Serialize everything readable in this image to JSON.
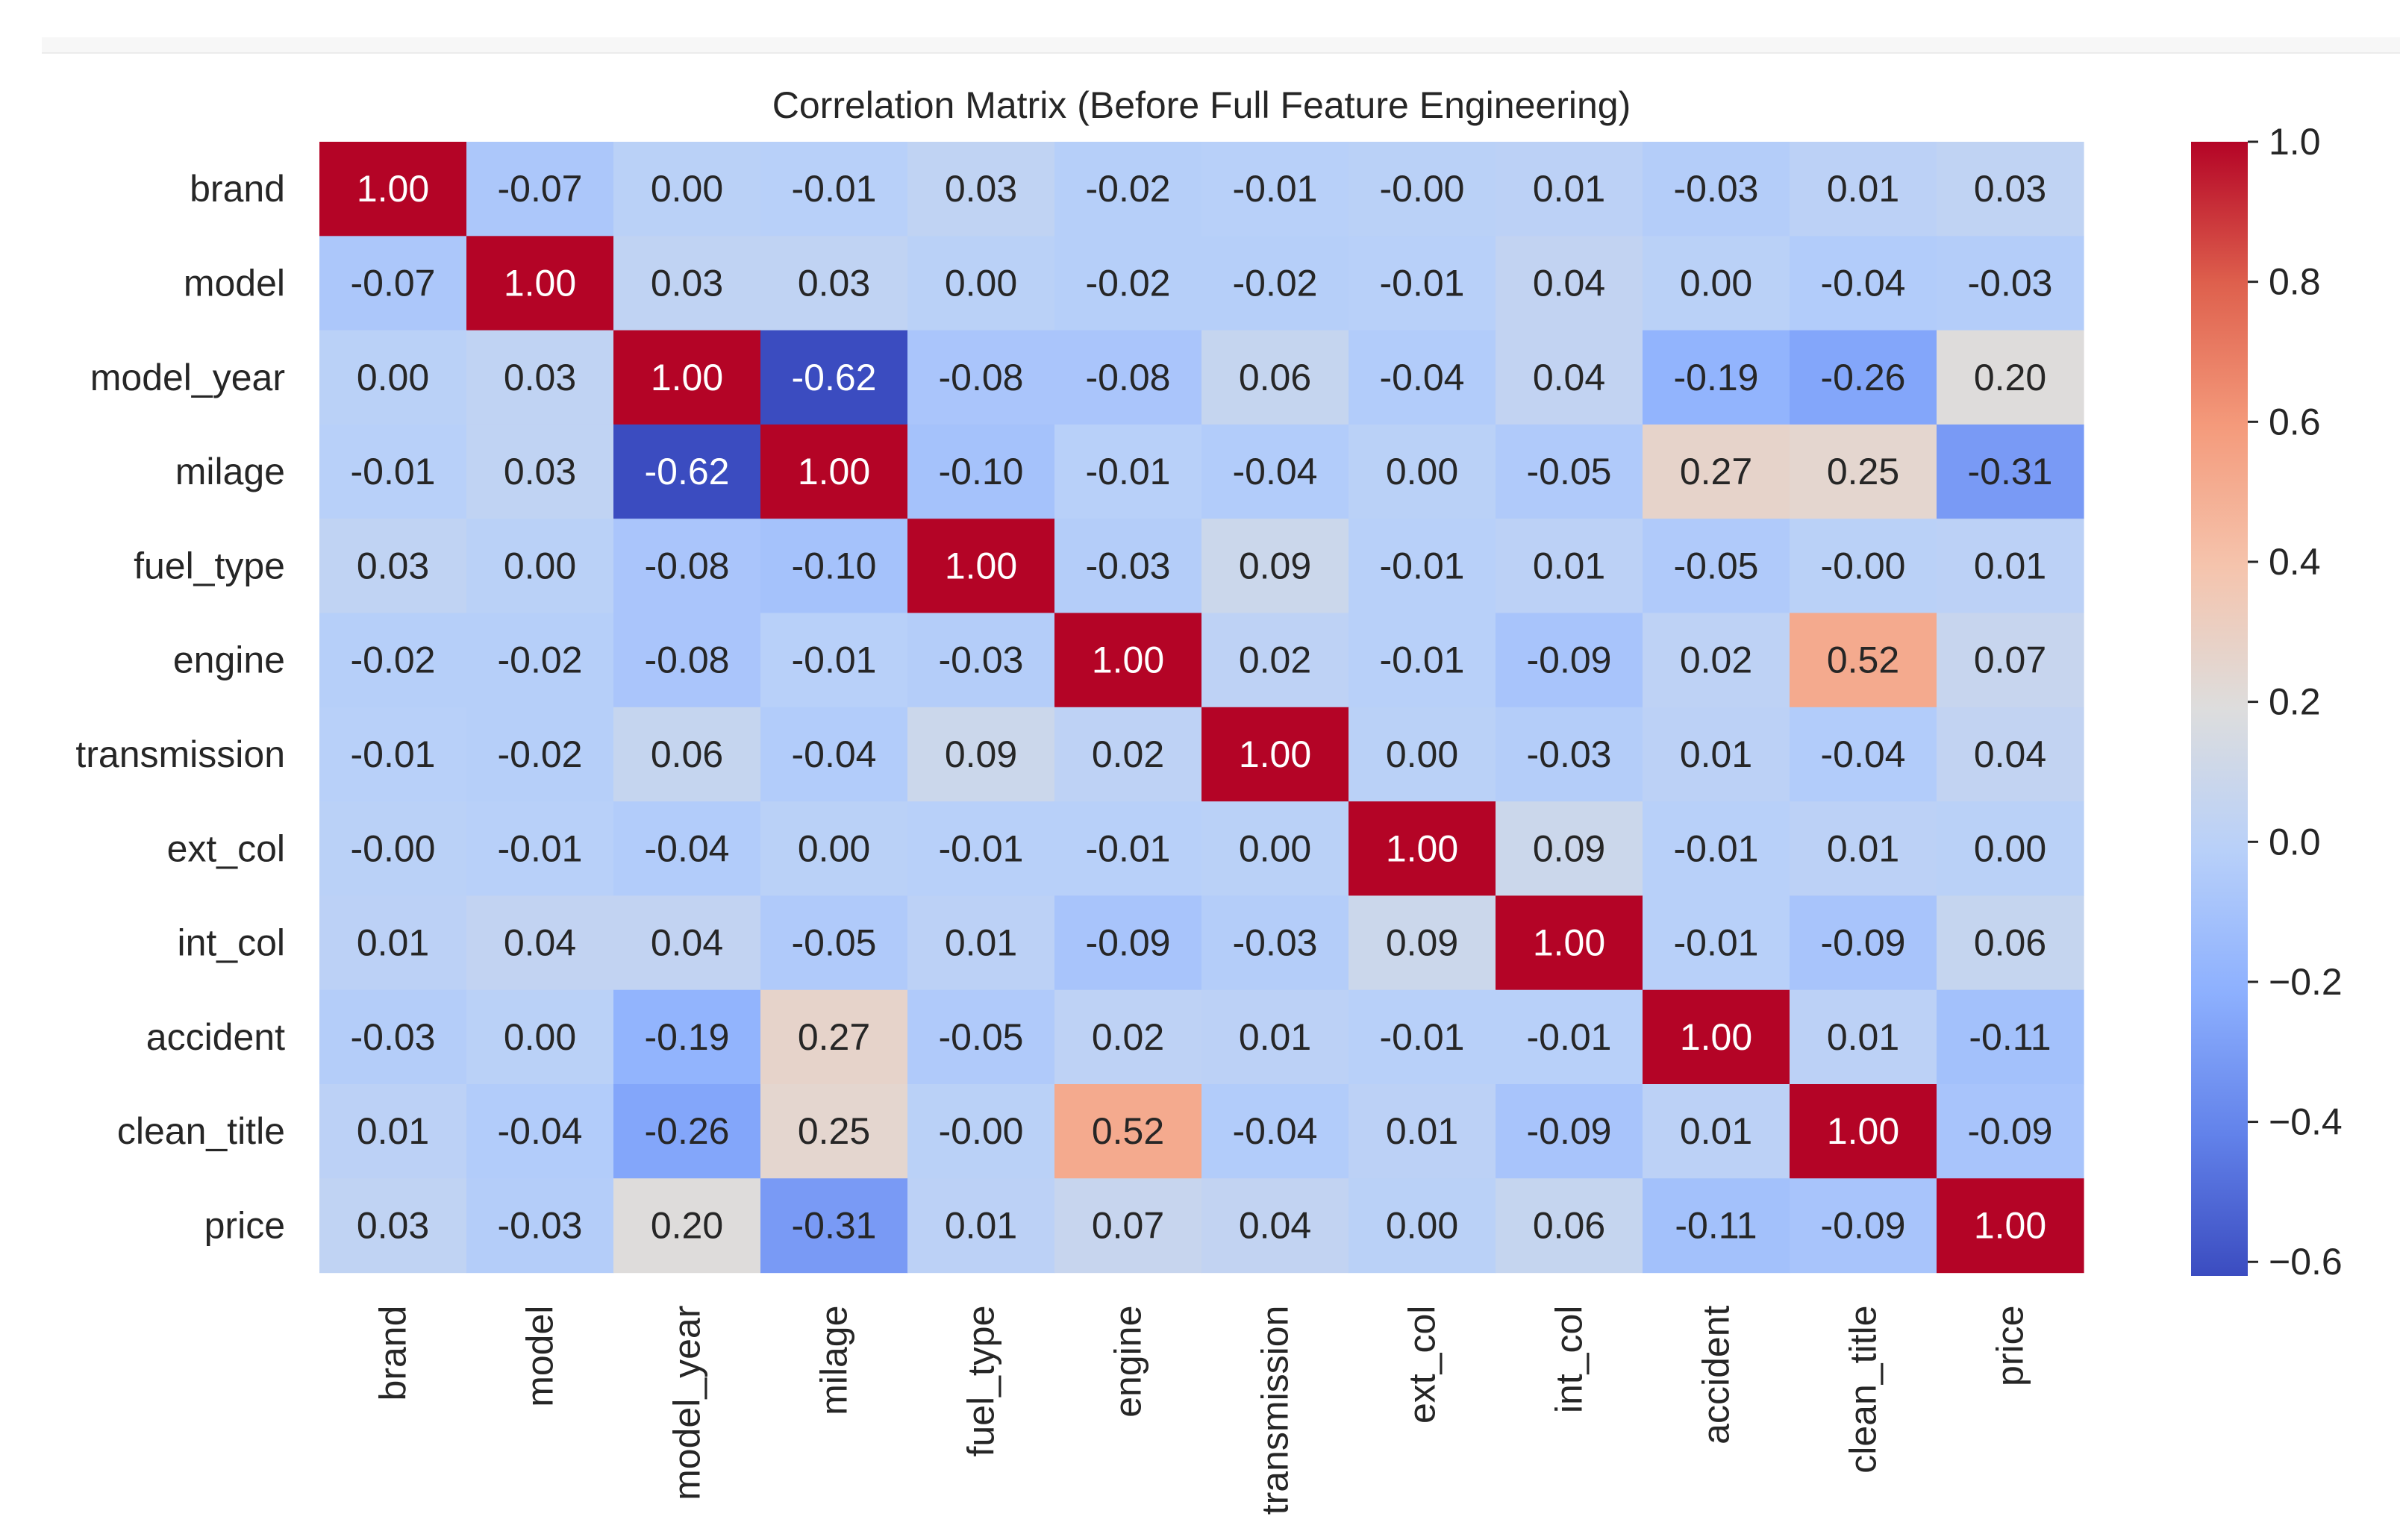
{
  "chart_data": {
    "type": "heatmap",
    "title": "Correlation Matrix (Before Full Feature Engineering)",
    "xlabel": "",
    "ylabel": "",
    "colormap": "coolwarm",
    "vmin": -0.62,
    "vmax": 1.0,
    "colorbar_ticks": [
      1.0,
      0.8,
      0.6,
      0.4,
      0.2,
      0.0,
      -0.2,
      -0.4,
      -0.6
    ],
    "colorbar_tick_labels": [
      "1.0",
      "0.8",
      "0.6",
      "0.4",
      "0.2",
      "0.0",
      "−0.2",
      "−0.4",
      "−0.6"
    ],
    "row_labels": [
      "brand",
      "model",
      "model_year",
      "milage",
      "fuel_type",
      "engine",
      "transmission",
      "ext_col",
      "int_col",
      "accident",
      "clean_title",
      "price"
    ],
    "col_labels": [
      "brand",
      "model",
      "model_year",
      "milage",
      "fuel_type",
      "engine",
      "transmission",
      "ext_col",
      "int_col",
      "accident",
      "clean_title",
      "price"
    ],
    "values": [
      [
        1.0,
        -0.07,
        0.0,
        -0.01,
        0.03,
        -0.02,
        -0.01,
        -0.0,
        0.01,
        -0.03,
        0.01,
        0.03
      ],
      [
        -0.07,
        1.0,
        0.03,
        0.03,
        0.0,
        -0.02,
        -0.02,
        -0.01,
        0.04,
        0.0,
        -0.04,
        -0.03
      ],
      [
        0.0,
        0.03,
        1.0,
        -0.62,
        -0.08,
        -0.08,
        0.06,
        -0.04,
        0.04,
        -0.19,
        -0.26,
        0.2
      ],
      [
        -0.01,
        0.03,
        -0.62,
        1.0,
        -0.1,
        -0.01,
        -0.04,
        0.0,
        -0.05,
        0.27,
        0.25,
        -0.31
      ],
      [
        0.03,
        0.0,
        -0.08,
        -0.1,
        1.0,
        -0.03,
        0.09,
        -0.01,
        0.01,
        -0.05,
        -0.0,
        0.01
      ],
      [
        -0.02,
        -0.02,
        -0.08,
        -0.01,
        -0.03,
        1.0,
        0.02,
        -0.01,
        -0.09,
        0.02,
        0.52,
        0.07
      ],
      [
        -0.01,
        -0.02,
        0.06,
        -0.04,
        0.09,
        0.02,
        1.0,
        0.0,
        -0.03,
        0.01,
        -0.04,
        0.04
      ],
      [
        -0.0,
        -0.01,
        -0.04,
        0.0,
        -0.01,
        -0.01,
        0.0,
        1.0,
        0.09,
        -0.01,
        0.01,
        0.0
      ],
      [
        0.01,
        0.04,
        0.04,
        -0.05,
        0.01,
        -0.09,
        -0.03,
        0.09,
        1.0,
        -0.01,
        -0.09,
        0.06
      ],
      [
        -0.03,
        0.0,
        -0.19,
        0.27,
        -0.05,
        0.02,
        0.01,
        -0.01,
        -0.01,
        1.0,
        0.01,
        -0.11
      ],
      [
        0.01,
        -0.04,
        -0.26,
        0.25,
        -0.0,
        0.52,
        -0.04,
        0.01,
        -0.09,
        0.01,
        1.0,
        -0.09
      ],
      [
        0.03,
        -0.03,
        0.2,
        -0.31,
        0.01,
        0.07,
        0.04,
        0.0,
        0.06,
        -0.11,
        -0.09,
        1.0
      ]
    ],
    "annotations": [
      [
        "1.00",
        "-0.07",
        "0.00",
        "-0.01",
        "0.03",
        "-0.02",
        "-0.01",
        "-0.00",
        "0.01",
        "-0.03",
        "0.01",
        "0.03"
      ],
      [
        "-0.07",
        "1.00",
        "0.03",
        "0.03",
        "0.00",
        "-0.02",
        "-0.02",
        "-0.01",
        "0.04",
        "0.00",
        "-0.04",
        "-0.03"
      ],
      [
        "0.00",
        "0.03",
        "1.00",
        "-0.62",
        "-0.08",
        "-0.08",
        "0.06",
        "-0.04",
        "0.04",
        "-0.19",
        "-0.26",
        "0.20"
      ],
      [
        "-0.01",
        "0.03",
        "-0.62",
        "1.00",
        "-0.10",
        "-0.01",
        "-0.04",
        "0.00",
        "-0.05",
        "0.27",
        "0.25",
        "-0.31"
      ],
      [
        "0.03",
        "0.00",
        "-0.08",
        "-0.10",
        "1.00",
        "-0.03",
        "0.09",
        "-0.01",
        "0.01",
        "-0.05",
        "-0.00",
        "0.01"
      ],
      [
        "-0.02",
        "-0.02",
        "-0.08",
        "-0.01",
        "-0.03",
        "1.00",
        "0.02",
        "-0.01",
        "-0.09",
        "0.02",
        "0.52",
        "0.07"
      ],
      [
        "-0.01",
        "-0.02",
        "0.06",
        "-0.04",
        "0.09",
        "0.02",
        "1.00",
        "0.00",
        "-0.03",
        "0.01",
        "-0.04",
        "0.04"
      ],
      [
        "-0.00",
        "-0.01",
        "-0.04",
        "0.00",
        "-0.01",
        "-0.01",
        "0.00",
        "1.00",
        "0.09",
        "-0.01",
        "0.01",
        "0.00"
      ],
      [
        "0.01",
        "0.04",
        "0.04",
        "-0.05",
        "0.01",
        "-0.09",
        "-0.03",
        "0.09",
        "1.00",
        "-0.01",
        "-0.09",
        "0.06"
      ],
      [
        "-0.03",
        "0.00",
        "-0.19",
        "0.27",
        "-0.05",
        "0.02",
        "0.01",
        "-0.01",
        "-0.01",
        "1.00",
        "0.01",
        "-0.11"
      ],
      [
        "0.01",
        "-0.04",
        "-0.26",
        "0.25",
        "-0.00",
        "0.52",
        "-0.04",
        "0.01",
        "-0.09",
        "0.01",
        "1.00",
        "-0.09"
      ],
      [
        "0.03",
        "-0.03",
        "0.20",
        "-0.31",
        "0.01",
        "0.07",
        "0.04",
        "0.00",
        "0.06",
        "-0.11",
        "-0.09",
        "1.00"
      ]
    ]
  }
}
